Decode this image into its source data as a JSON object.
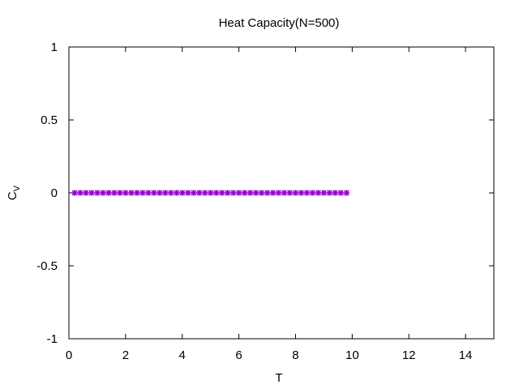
{
  "chart_data": {
    "type": "scatter",
    "title": "Heat Capacity(N=500)",
    "xlabel": "T",
    "ylabel_main": "C",
    "ylabel_sub": "V",
    "xlim": [
      0,
      15
    ],
    "ylim": [
      -1,
      1
    ],
    "xticks": [
      0,
      2,
      4,
      6,
      8,
      10,
      12,
      14
    ],
    "yticks": [
      -1,
      -0.5,
      0,
      0.5,
      1
    ],
    "xtick_labels": [
      "0",
      "2",
      "4",
      "6",
      "8",
      "10",
      "12",
      "14"
    ],
    "ytick_labels": [
      "-1",
      "-0.5",
      "0",
      "0.5",
      "1"
    ],
    "grid": false,
    "series": [
      {
        "color": "#9400d3",
        "marker": "star",
        "x": [
          0.2,
          0.4,
          0.6,
          0.8,
          1.0,
          1.2,
          1.4,
          1.6,
          1.8,
          2.0,
          2.2,
          2.4,
          2.6,
          2.8,
          3.0,
          3.2,
          3.4,
          3.6,
          3.8,
          4.0,
          4.2,
          4.4,
          4.6,
          4.8,
          5.0,
          5.2,
          5.4,
          5.6,
          5.8,
          6.0,
          6.2,
          6.4,
          6.6,
          6.8,
          7.0,
          7.2,
          7.4,
          7.6,
          7.8,
          8.0,
          8.2,
          8.4,
          8.6,
          8.8,
          9.0,
          9.2,
          9.4,
          9.6,
          9.8
        ],
        "y": [
          0,
          0,
          0,
          0,
          0,
          0,
          0,
          0,
          0,
          0,
          0,
          0,
          0,
          0,
          0,
          0,
          0,
          0,
          0,
          0,
          0,
          0,
          0,
          0,
          0,
          0,
          0,
          0,
          0,
          0,
          0,
          0,
          0,
          0,
          0,
          0,
          0,
          0,
          0,
          0,
          0,
          0,
          0,
          0,
          0,
          0,
          0,
          0,
          0
        ]
      }
    ]
  }
}
